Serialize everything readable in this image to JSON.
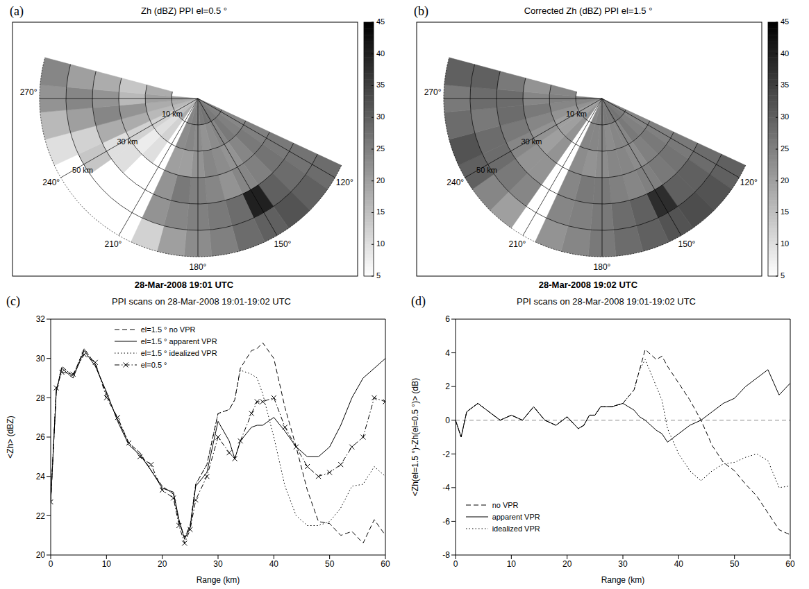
{
  "chart_data": [
    {
      "type": "ppi",
      "panel": "(a)",
      "title": "Zh (dBZ) PPI el=0.5 °",
      "subtitle": "28-Mar-2008 19:01 UTC",
      "azimuth_edges": [
        115,
        125,
        135,
        145,
        155,
        165,
        175,
        185,
        195,
        205,
        215,
        225,
        235,
        245,
        255,
        265,
        275,
        285
      ],
      "range_edges": [
        0,
        10,
        20,
        30,
        40,
        50,
        60
      ],
      "cells": [
        [
          25,
          25,
          26,
          27,
          27,
          26,
          25,
          25,
          24,
          null,
          18,
          15,
          14,
          16,
          18,
          20,
          null
        ],
        [
          24,
          25,
          26,
          24,
          23,
          22,
          23,
          24,
          23,
          null,
          12,
          10,
          12,
          16,
          18,
          20,
          18
        ],
        [
          25,
          26,
          24,
          22,
          23,
          24,
          22,
          20,
          20,
          null,
          10,
          8,
          12,
          18,
          22,
          16,
          14
        ],
        [
          26,
          27,
          25,
          24,
          22,
          24,
          25,
          26,
          22,
          null,
          null,
          10,
          10,
          18,
          24,
          22,
          18
        ],
        [
          27,
          28,
          30,
          40,
          28,
          26,
          25,
          24,
          22,
          null,
          null,
          null,
          14,
          12,
          20,
          24,
          20
        ],
        [
          28,
          30,
          32,
          30,
          28,
          25,
          23,
          20,
          12,
          null,
          null,
          null,
          null,
          10,
          16,
          22,
          24
        ]
      ],
      "azimuth_ticks": [
        {
          "value": 120,
          "label": "120°"
        },
        {
          "value": 150,
          "label": "150°"
        },
        {
          "value": 180,
          "label": "180°"
        },
        {
          "value": 210,
          "label": "210°"
        },
        {
          "value": 240,
          "label": "240°"
        },
        {
          "value": 270,
          "label": "270°"
        }
      ],
      "range_rings": [
        10,
        20,
        30,
        40,
        50,
        60
      ],
      "range_labels": [
        {
          "value": 10,
          "label": "10 km"
        },
        {
          "value": 30,
          "label": "30 km"
        },
        {
          "value": 50,
          "label": "50 km"
        }
      ],
      "colorbar_range": [
        5,
        45
      ],
      "colorbar_ticks": [
        5,
        10,
        15,
        20,
        25,
        30,
        35,
        40,
        45
      ]
    },
    {
      "type": "ppi",
      "panel": "(b)",
      "title": "Corrected Zh (dBZ) PPI el=1.5 °",
      "subtitle": "28-Mar-2008 19:02 UTC",
      "azimuth_edges": [
        115,
        125,
        135,
        145,
        155,
        165,
        175,
        185,
        195,
        205,
        215,
        225,
        235,
        245,
        255,
        265,
        275,
        285
      ],
      "range_edges": [
        0,
        10,
        20,
        30,
        40,
        50,
        60
      ],
      "cells": [
        [
          25,
          26,
          27,
          27,
          26,
          26,
          25,
          25,
          24,
          null,
          22,
          20,
          20,
          22,
          24,
          25,
          null
        ],
        [
          24,
          25,
          26,
          24,
          24,
          23,
          24,
          24,
          24,
          null,
          22,
          20,
          20,
          22,
          24,
          25,
          24
        ],
        [
          25,
          26,
          25,
          23,
          24,
          24,
          23,
          22,
          23,
          null,
          22,
          20,
          22,
          24,
          26,
          24,
          22
        ],
        [
          26,
          27,
          26,
          25,
          24,
          25,
          26,
          26,
          24,
          null,
          22,
          22,
          24,
          26,
          28,
          28,
          26
        ],
        [
          28,
          30,
          30,
          38,
          30,
          28,
          26,
          25,
          24,
          null,
          24,
          26,
          28,
          28,
          26,
          28,
          30
        ],
        [
          30,
          32,
          33,
          32,
          30,
          28,
          26,
          24,
          22,
          null,
          20,
          24,
          30,
          32,
          28,
          26,
          30
        ]
      ],
      "azimuth_ticks": [
        {
          "value": 120,
          "label": "120°"
        },
        {
          "value": 150,
          "label": "150°"
        },
        {
          "value": 180,
          "label": "180°"
        },
        {
          "value": 210,
          "label": "210°"
        },
        {
          "value": 240,
          "label": "240°"
        },
        {
          "value": 270,
          "label": "270°"
        }
      ],
      "range_rings": [
        10,
        20,
        30,
        40,
        50,
        60
      ],
      "range_labels": [
        {
          "value": 10,
          "label": "10 km"
        },
        {
          "value": 30,
          "label": "30 km"
        },
        {
          "value": 50,
          "label": "50 km"
        }
      ],
      "colorbar_range": [
        5,
        45
      ],
      "colorbar_ticks": [
        5,
        10,
        15,
        20,
        25,
        30,
        35,
        40,
        45
      ]
    },
    {
      "type": "line",
      "panel": "(c)",
      "title": "PPI scans on 28-Mar-2008 19:01-19:02 UTC",
      "x_label": "Range (km)",
      "y_label": "<Zh> (dBZ)",
      "x": [
        0,
        1,
        2,
        4,
        6,
        8,
        10,
        12,
        14,
        16,
        18,
        20,
        22,
        23,
        24,
        25,
        26,
        28,
        30,
        32,
        33,
        34,
        36,
        37,
        38,
        40,
        42,
        44,
        46,
        48,
        50,
        52,
        54,
        56,
        58,
        60
      ],
      "xlim": [
        0,
        60
      ],
      "xticks": [
        0,
        10,
        20,
        30,
        40,
        50,
        60
      ],
      "ylim": [
        20,
        32
      ],
      "yticks": [
        20,
        22,
        24,
        26,
        28,
        30,
        32
      ],
      "legend": "upper left",
      "series": [
        {
          "name": "el=1.5 ° no VPR",
          "color": "#000000",
          "line_style": "dashed",
          "values": [
            22.7,
            28.3,
            29.6,
            29.1,
            30.5,
            29.7,
            28.2,
            26.9,
            25.7,
            25.2,
            24.3,
            23.5,
            23.1,
            21.7,
            20.9,
            21.5,
            23.6,
            24.6,
            27.2,
            27.4,
            27.9,
            29.5,
            30.4,
            30.5,
            30.8,
            30.0,
            27.5,
            25.5,
            23.3,
            21.7,
            21.6,
            21.0,
            21.2,
            20.6,
            21.8,
            21.0
          ]
        },
        {
          "name": "el=1.5 ° apparent VPR",
          "color": "#000000",
          "line_style": "solid",
          "values": [
            22.7,
            28.3,
            29.5,
            29.0,
            30.4,
            29.6,
            28.3,
            26.8,
            25.6,
            25.1,
            24.3,
            23.4,
            23.2,
            21.8,
            20.8,
            21.4,
            23.5,
            24.2,
            26.8,
            25.8,
            24.9,
            25.8,
            26.5,
            26.6,
            26.6,
            27.0,
            26.3,
            25.5,
            25.0,
            25.0,
            25.5,
            26.6,
            28.0,
            29.0,
            29.5,
            30.0
          ]
        },
        {
          "name": "el=1.5 ° idealized VPR",
          "color": "#000000",
          "line_style": "dotted",
          "values": [
            22.7,
            28.3,
            29.6,
            29.1,
            30.5,
            29.7,
            28.2,
            26.9,
            25.7,
            25.2,
            24.3,
            23.5,
            23.1,
            21.7,
            20.9,
            21.5,
            23.6,
            24.6,
            27.2,
            27.4,
            27.9,
            29.4,
            29.2,
            29.0,
            28.2,
            26.0,
            23.5,
            22.0,
            21.5,
            21.5,
            21.7,
            22.4,
            23.5,
            23.6,
            24.5,
            24.0
          ]
        },
        {
          "name": "el=0.5 °",
          "color": "#000000",
          "line_style": "dashdot",
          "marker": "x",
          "values": [
            22.7,
            28.5,
            29.3,
            29.2,
            30.2,
            29.8,
            28.0,
            27.0,
            25.7,
            25.0,
            24.6,
            23.3,
            22.9,
            21.5,
            20.6,
            21.3,
            22.8,
            24.0,
            26.0,
            25.2,
            24.9,
            25.8,
            27.2,
            27.8,
            27.8,
            28.0,
            26.5,
            25.5,
            24.5,
            24.0,
            24.2,
            24.6,
            25.5,
            26.0,
            28.0,
            27.8
          ]
        }
      ]
    },
    {
      "type": "line",
      "panel": "(d)",
      "title": "PPI scans on 28-Mar-2008 19:01-19:02 UTC",
      "x_label": "Range (km)",
      "y_label": "<Zh(el=1.5 °)-Zh(el=0.5 °)> (dB)",
      "x": [
        0,
        1,
        2,
        4,
        6,
        8,
        10,
        12,
        14,
        16,
        18,
        20,
        22,
        23,
        24,
        25,
        26,
        28,
        30,
        32,
        33,
        34,
        36,
        37,
        38,
        40,
        42,
        44,
        46,
        48,
        50,
        52,
        54,
        56,
        58,
        60
      ],
      "xlim": [
        0,
        60
      ],
      "xticks": [
        0,
        10,
        20,
        30,
        40,
        50,
        60
      ],
      "ylim": [
        -8,
        6
      ],
      "yticks": [
        -8,
        -6,
        -4,
        -2,
        0,
        2,
        4,
        6
      ],
      "legend": "lower left",
      "reference_y": 0,
      "series": [
        {
          "name": "no VPR",
          "color": "#000000",
          "line_style": "dashed",
          "values": [
            0,
            -1,
            0.5,
            1,
            0.5,
            0,
            0.3,
            0,
            0.8,
            0,
            -0.3,
            0.2,
            -0.5,
            -0.3,
            0.3,
            0.3,
            0.8,
            0.8,
            1.0,
            1.8,
            3.0,
            4.2,
            3.6,
            3.8,
            3.2,
            2.2,
            1.2,
            0,
            -1.5,
            -2.5,
            -3.0,
            -3.8,
            -4.5,
            -5.5,
            -6.5,
            -6.8
          ]
        },
        {
          "name": "apparent VPR",
          "color": "#000000",
          "line_style": "solid",
          "values": [
            0,
            -1,
            0.5,
            1,
            0.5,
            0,
            0.3,
            0,
            0.8,
            0,
            -0.3,
            0.2,
            -0.5,
            -0.3,
            0.3,
            0.3,
            0.8,
            0.8,
            1.0,
            0.6,
            0.2,
            0,
            -0.6,
            -0.8,
            -1.3,
            -0.8,
            -0.3,
            0,
            0.5,
            1.0,
            1.3,
            2.0,
            2.5,
            3.0,
            1.5,
            2.2
          ]
        },
        {
          "name": "idealized VPR",
          "color": "#000000",
          "line_style": "dotted",
          "values": [
            0,
            -1,
            0.5,
            1,
            0.5,
            0,
            0.3,
            0,
            0.8,
            0,
            -0.3,
            0.2,
            -0.5,
            -0.3,
            0.3,
            0.3,
            0.8,
            0.8,
            1.0,
            1.8,
            3.0,
            3.6,
            2.0,
            1.2,
            -0.5,
            -2.0,
            -3.0,
            -3.6,
            -3.0,
            -2.6,
            -2.5,
            -2.2,
            -2.0,
            -2.4,
            -4.0,
            -3.9
          ]
        }
      ]
    }
  ]
}
